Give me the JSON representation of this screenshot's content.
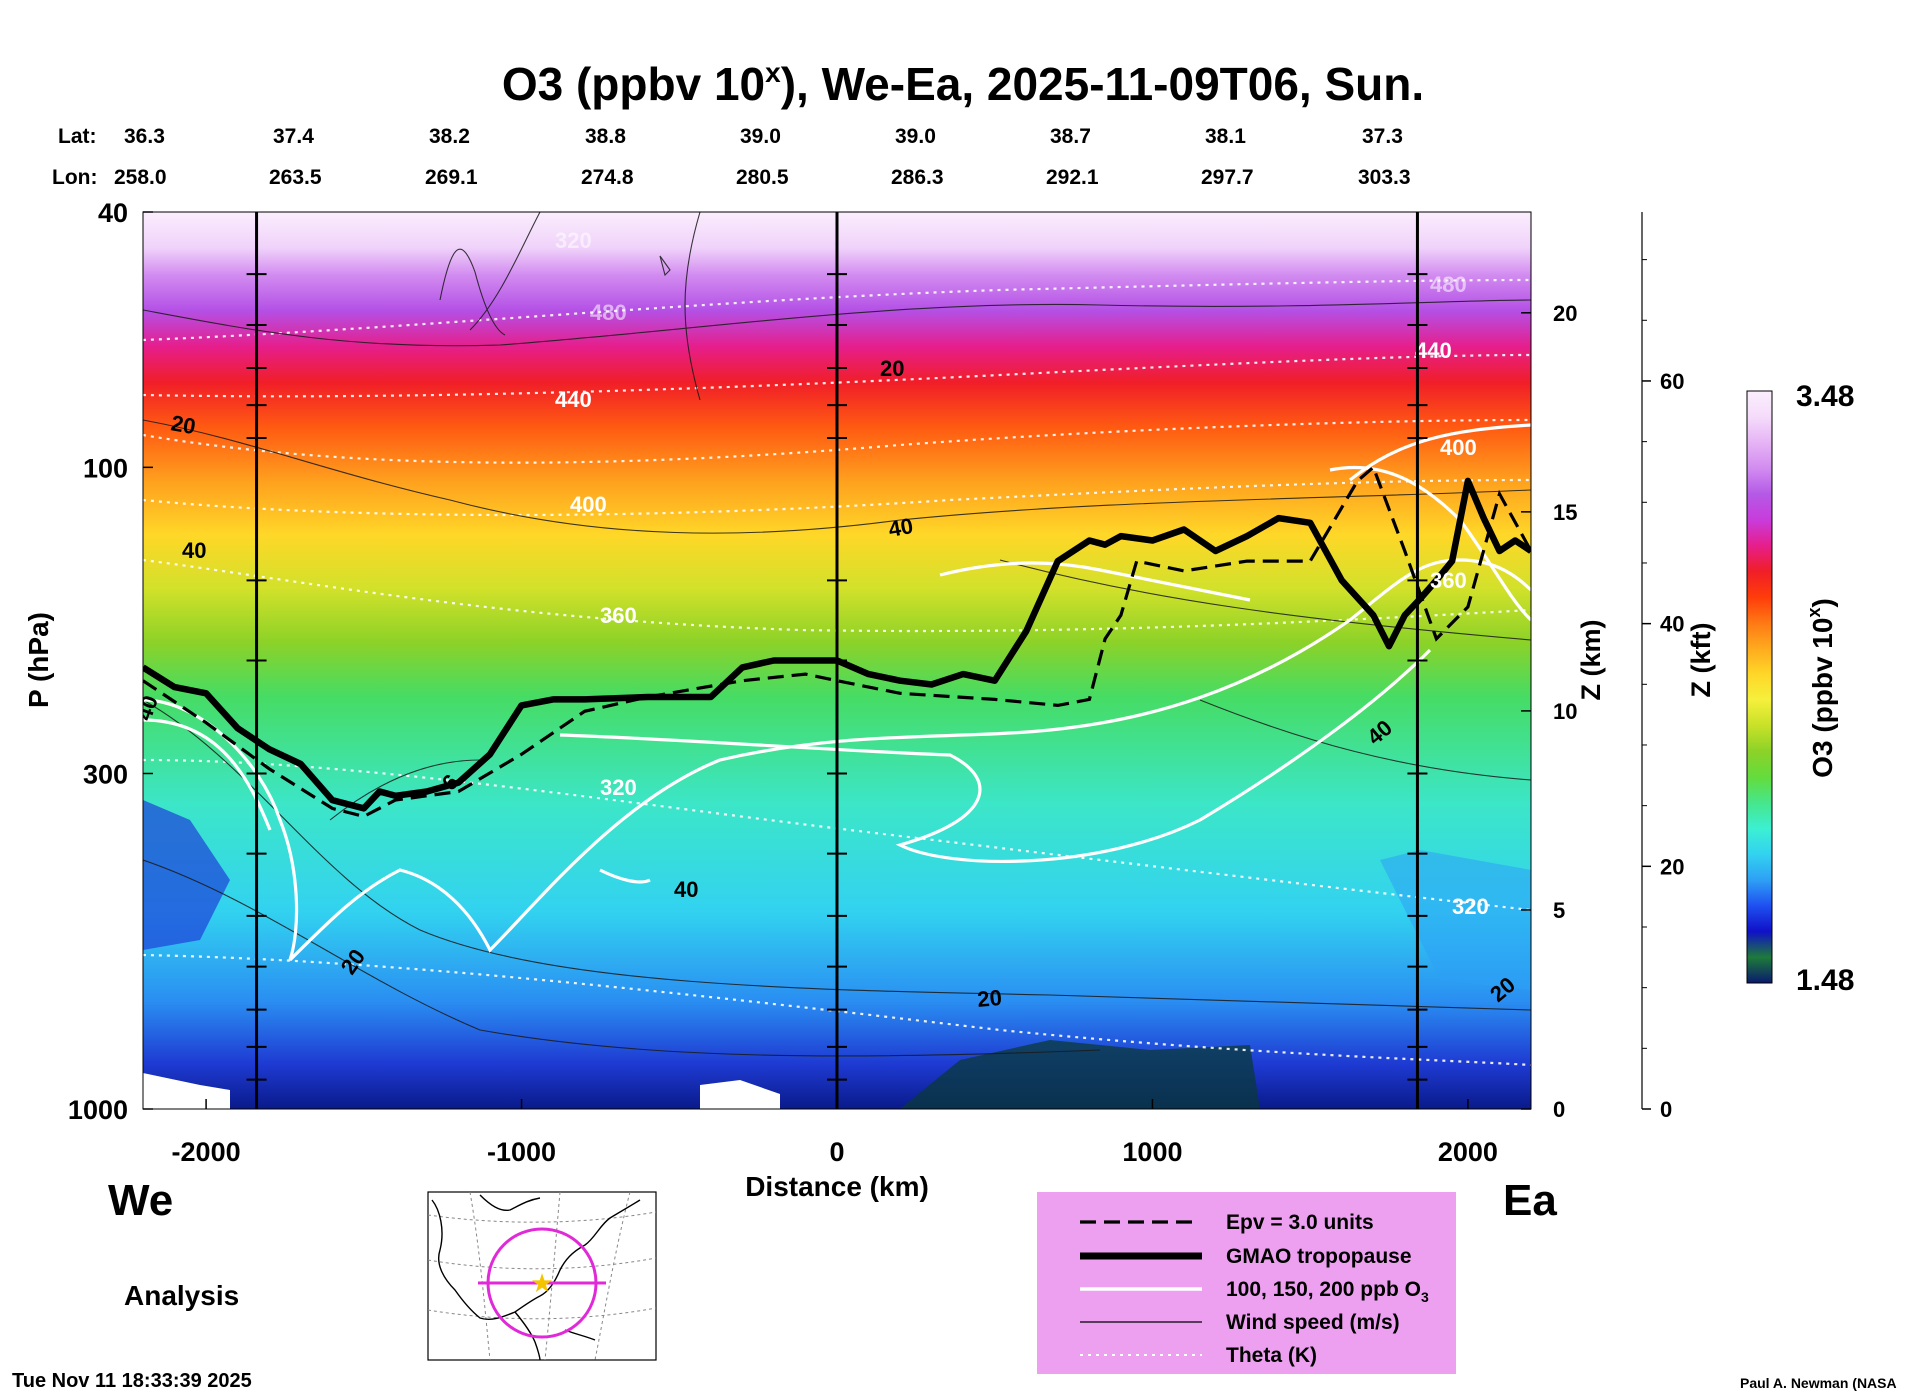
{
  "chart_data": {
    "type": "heatmap",
    "title_main": "O3 (ppbv 10",
    "title_sup": "x",
    "title_rest": "), We-Ea, 2025-11-09T06, Sun.",
    "xlabel": "Distance (km)",
    "ylabel": "P (hPa)",
    "xlim": [
      -2200,
      2200
    ],
    "ylim": [
      1000,
      40
    ],
    "x_ticks": [
      "-2000",
      "-1000",
      "0",
      "1000",
      "2000"
    ],
    "x_tick_values": [
      -2000,
      -1000,
      0,
      1000,
      2000
    ],
    "y_ticks": [
      "40",
      "100",
      "300",
      "1000"
    ],
    "y_tick_values": [
      40,
      100,
      300,
      1000
    ],
    "lat_label": "Lat:",
    "lon_label": "Lon:",
    "lat": [
      "36.3",
      "37.4",
      "38.2",
      "38.8",
      "39.0",
      "39.0",
      "38.7",
      "38.1",
      "37.3"
    ],
    "lon": [
      "258.0",
      "263.5",
      "269.1",
      "274.8",
      "280.5",
      "286.3",
      "292.1",
      "297.7",
      "303.3"
    ],
    "z_km_label": "Z (km)",
    "z_km_ticks": [
      "0",
      "5",
      "10",
      "15",
      "20"
    ],
    "z_km_values": [
      0,
      5,
      10,
      15,
      20
    ],
    "z_kft_label": "Z (kft)",
    "z_kft_ticks": [
      "0",
      "20",
      "40",
      "60"
    ],
    "z_kft_values": [
      0,
      20,
      40,
      60
    ],
    "vertical_markers_km": [
      -1840,
      0,
      1840
    ],
    "colorbar": {
      "label_main": "O3 (ppbv 10",
      "label_sup": "x",
      "label_close": ")",
      "min_label": "1.48",
      "max_label": "3.48",
      "min": 1.48,
      "max": 3.48,
      "colors": [
        "#0a1a6e",
        "#1e7a3a",
        "#1010c8",
        "#1e50f0",
        "#2ea0f5",
        "#32d2f0",
        "#3cf0d2",
        "#46e68c",
        "#64dc3c",
        "#8cd228",
        "#c8e128",
        "#f5f03c",
        "#ffd728",
        "#ffaa1e",
        "#ff7814",
        "#ff3c0a",
        "#f01e28",
        "#e61e8c",
        "#c83cdc",
        "#b45ae6",
        "#d28cf0",
        "#e6b4f5",
        "#f5dcfa",
        "#fbeefd"
      ]
    },
    "contour_labels": {
      "theta": [
        "440",
        "400",
        "360",
        "320",
        "440",
        "400",
        "360",
        "320",
        "480",
        "480",
        "320"
      ],
      "wind": [
        "20",
        "40",
        "40",
        "40",
        "20",
        "20",
        "40",
        "20",
        "40",
        "20",
        "6"
      ]
    },
    "tropopause_profile": {
      "x_km": [
        -2200,
        -2100,
        -2000,
        -1900,
        -1800,
        -1700,
        -1600,
        -1500,
        -1450,
        -1400,
        -1300,
        -1200,
        -1100,
        -1000,
        -900,
        -800,
        -600,
        -400,
        -300,
        -200,
        -100,
        0,
        100,
        200,
        300,
        400,
        500,
        600,
        700,
        800,
        850,
        900,
        1000,
        1100,
        1200,
        1300,
        1400,
        1500,
        1600,
        1700,
        1750,
        1800,
        1850,
        1900,
        1950,
        2000,
        2050,
        2100,
        2150,
        2200
      ],
      "p_hpa": [
        205,
        220,
        225,
        255,
        275,
        290,
        330,
        340,
        320,
        325,
        320,
        310,
        280,
        235,
        230,
        230,
        228,
        228,
        205,
        200,
        200,
        200,
        210,
        215,
        218,
        210,
        215,
        180,
        140,
        130,
        132,
        128,
        130,
        125,
        135,
        128,
        120,
        122,
        150,
        170,
        190,
        170,
        160,
        150,
        140,
        105,
        120,
        135,
        130,
        135
      ]
    },
    "epv_profile": {
      "x_km": [
        -2200,
        -2000,
        -1800,
        -1600,
        -1500,
        -1400,
        -1200,
        -1000,
        -800,
        -600,
        -300,
        -100,
        0,
        200,
        500,
        700,
        800,
        850,
        900,
        950,
        1100,
        1300,
        1500,
        1650,
        1700,
        1800,
        1900,
        2000,
        2100,
        2200
      ],
      "p_hpa": [
        215,
        250,
        295,
        340,
        350,
        330,
        320,
        280,
        240,
        228,
        215,
        210,
        215,
        225,
        230,
        235,
        230,
        185,
        170,
        140,
        145,
        140,
        140,
        105,
        100,
        135,
        185,
        165,
        110,
        135
      ]
    }
  },
  "left_label": "We",
  "right_label": "Ea",
  "analysis_label": "Analysis",
  "legend": {
    "epv": "Epv = 3.0 units",
    "tropopause": "GMAO tropopause",
    "o3_contours_pre": "100, 150, 200 ppb O",
    "o3_contours_sub": "3",
    "wind": "Wind speed (m/s)",
    "theta": "Theta (K)"
  },
  "timestamp": "Tue Nov 11 18:33:39 2025",
  "credit": "Paul A. Newman (NASA",
  "colors": {
    "map_circle": "#e02ad8",
    "map_star": "#f5c400",
    "legend_bg": "#eea0f0"
  }
}
